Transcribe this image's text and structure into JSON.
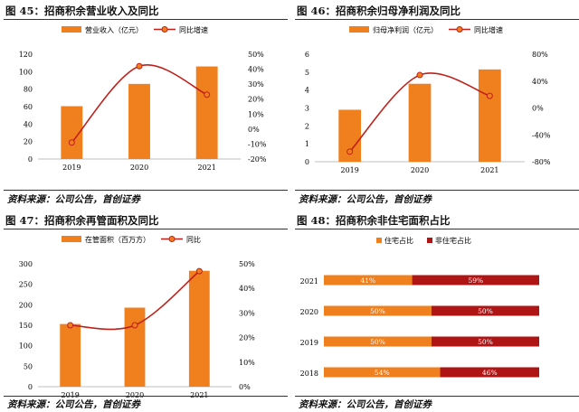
{
  "figures": [
    {
      "title": "图 45：招商积余营业收入及同比",
      "source": "资料来源：公司公告，首创证券"
    },
    {
      "title": "图 46：招商积余归母净利润及同比",
      "source": "资料来源：公司公告，首创证券"
    },
    {
      "title": "图 47：招商积余再管面积及同比",
      "source": "资料来源：公司公告，首创证券"
    },
    {
      "title": "图 48：招商积余非住宅面积占比",
      "source": "资料来源：公司公告，首创证券"
    }
  ],
  "colors": {
    "bar": "#f07f1e",
    "line": "#c0201b",
    "residential": "#f07f1e",
    "nonresidential": "#b01515"
  },
  "chart_data": [
    {
      "type": "bar",
      "categories": [
        "2019",
        "2020",
        "2021"
      ],
      "series": [
        {
          "name": "营业收入（亿元）",
          "type": "bar",
          "axis": "left",
          "values": [
            60.5,
            86,
            106
          ]
        },
        {
          "name": "同比增速",
          "type": "line",
          "axis": "right",
          "values": [
            -0.09,
            0.42,
            0.23
          ]
        }
      ],
      "ylim": [
        0,
        120
      ],
      "yticks": [
        "0",
        "20",
        "40",
        "60",
        "80",
        "100",
        "120"
      ],
      "y2lim": [
        -0.2,
        0.5
      ],
      "y2ticks": [
        "-20%",
        "-10%",
        "0%",
        "10%",
        "20%",
        "30%",
        "40%",
        "50%"
      ],
      "legend_position": "top"
    },
    {
      "type": "bar",
      "categories": [
        "2019",
        "2020",
        "2021"
      ],
      "series": [
        {
          "name": "归母净利润（亿元）",
          "type": "bar",
          "axis": "left",
          "values": [
            2.9,
            4.35,
            5.15
          ]
        },
        {
          "name": "同比增速",
          "type": "line",
          "axis": "right",
          "values": [
            -0.65,
            0.49,
            0.18
          ]
        }
      ],
      "ylim": [
        0,
        6
      ],
      "yticks": [
        "0",
        "1",
        "2",
        "3",
        "4",
        "5",
        "6"
      ],
      "y2lim": [
        -0.8,
        0.8
      ],
      "y2ticks": [
        "-80%",
        "-40%",
        "0%",
        "40%",
        "80%"
      ],
      "legend_position": "top"
    },
    {
      "type": "bar",
      "categories": [
        "2019",
        "2020",
        "2021"
      ],
      "series": [
        {
          "name": "在管面积（百万方）",
          "type": "bar",
          "axis": "left",
          "values": [
            153,
            193,
            283
          ]
        },
        {
          "name": "同比",
          "type": "line",
          "axis": "right",
          "values": [
            0.25,
            0.25,
            0.47
          ]
        }
      ],
      "ylim": [
        0,
        300
      ],
      "yticks": [
        "0",
        "50",
        "100",
        "150",
        "200",
        "250",
        "300"
      ],
      "y2lim": [
        0,
        0.5
      ],
      "y2ticks": [
        "0%",
        "10%",
        "20%",
        "30%",
        "40%",
        "50%"
      ],
      "legend_position": "top"
    },
    {
      "type": "bar",
      "orientation": "horizontal",
      "stacked": true,
      "categories": [
        "2021",
        "2020",
        "2019",
        "2018"
      ],
      "series": [
        {
          "name": "住宅占比",
          "values": [
            0.41,
            0.5,
            0.5,
            0.54
          ],
          "labels": [
            "41%",
            "50%",
            "50%",
            "54%"
          ]
        },
        {
          "name": "非住宅占比",
          "values": [
            0.59,
            0.5,
            0.5,
            0.46
          ],
          "labels": [
            "59%",
            "50%",
            "50%",
            "46%"
          ]
        }
      ],
      "xlim": [
        0,
        1
      ],
      "legend_position": "top"
    }
  ]
}
